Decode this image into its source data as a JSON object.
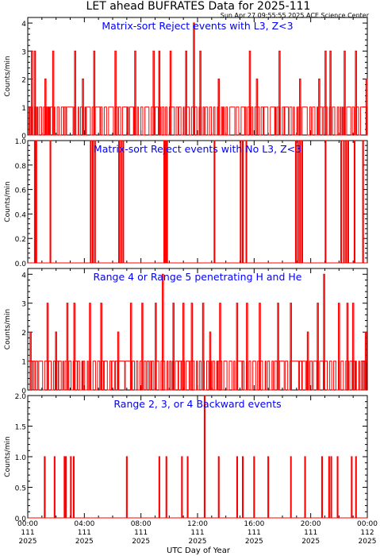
{
  "header": {
    "title": "LET ahead BUFRATES Data for 2025-111",
    "timestamp": "Sun Apr 27 09:55:55 2025 ACE Science Center"
  },
  "colors": {
    "series": "#ff0000",
    "panel_title": "#0000ff",
    "axes": "#000000",
    "background": "#ffffff"
  },
  "x_axis": {
    "label": "UTC Day of Year",
    "ticks": [
      {
        "time": "00:00",
        "doy": "111",
        "year": "2025"
      },
      {
        "time": "04:00",
        "doy": "111",
        "year": "2025"
      },
      {
        "time": "08:00",
        "doy": "111",
        "year": "2025"
      },
      {
        "time": "12:00",
        "doy": "111",
        "year": "2025"
      },
      {
        "time": "16:00",
        "doy": "111",
        "year": "2025"
      },
      {
        "time": "20:00",
        "doy": "111",
        "year": "2025"
      },
      {
        "time": "00:00",
        "doy": "112",
        "year": "2025"
      }
    ]
  },
  "chart_data": [
    {
      "type": "line",
      "title": "Matrix-sort Reject events with L3, Z<3",
      "ylabel": "Counts/min",
      "ylim": [
        0,
        4.2
      ],
      "yticks": [
        "0",
        "1",
        "2",
        "3",
        "4"
      ],
      "xlim_hours": [
        0,
        24
      ],
      "grid": false,
      "resolution": "1 min",
      "background_counts": "mostly 0–1 counts/min throughout the day",
      "peaks": [
        {
          "hour": 0.3,
          "value": 3
        },
        {
          "hour": 0.5,
          "value": 3
        },
        {
          "hour": 1.25,
          "value": 2
        },
        {
          "hour": 1.8,
          "value": 3
        },
        {
          "hour": 3.35,
          "value": 3
        },
        {
          "hour": 3.9,
          "value": 2
        },
        {
          "hour": 4.7,
          "value": 3
        },
        {
          "hour": 6.2,
          "value": 3
        },
        {
          "hour": 7.6,
          "value": 3
        },
        {
          "hour": 8.9,
          "value": 3
        },
        {
          "hour": 9.3,
          "value": 3
        },
        {
          "hour": 10.1,
          "value": 3
        },
        {
          "hour": 11.2,
          "value": 3
        },
        {
          "hour": 11.75,
          "value": 4
        },
        {
          "hour": 12.2,
          "value": 3
        },
        {
          "hour": 13.5,
          "value": 2
        },
        {
          "hour": 15.7,
          "value": 3
        },
        {
          "hour": 16.2,
          "value": 2
        },
        {
          "hour": 17.8,
          "value": 3
        },
        {
          "hour": 19.25,
          "value": 2
        },
        {
          "hour": 20.6,
          "value": 2
        },
        {
          "hour": 21.05,
          "value": 3
        },
        {
          "hour": 21.4,
          "value": 3
        },
        {
          "hour": 22.4,
          "value": 3
        },
        {
          "hour": 23.2,
          "value": 3
        },
        {
          "hour": 23.95,
          "value": 2
        }
      ]
    },
    {
      "type": "line",
      "title": "Matrix-sort Reject events with No L3, Z<3",
      "ylabel": "Counts/min",
      "ylim": [
        0,
        1.0
      ],
      "yticks": [
        "0.0",
        "0.2",
        "0.4",
        "0.6",
        "0.8",
        "1.0"
      ],
      "xlim_hours": [
        0,
        24
      ],
      "grid": false,
      "peaks": [
        {
          "hour": 0.5,
          "value": 1
        },
        {
          "hour": 0.6,
          "value": 1
        },
        {
          "hour": 1.6,
          "value": 1
        },
        {
          "hour": 4.45,
          "value": 1
        },
        {
          "hour": 4.6,
          "value": 1
        },
        {
          "hour": 4.75,
          "value": 1
        },
        {
          "hour": 6.45,
          "value": 1
        },
        {
          "hour": 6.6,
          "value": 1
        },
        {
          "hour": 6.75,
          "value": 1
        },
        {
          "hour": 9.65,
          "value": 1
        },
        {
          "hour": 9.75,
          "value": 1
        },
        {
          "hour": 9.85,
          "value": 1
        },
        {
          "hour": 13.2,
          "value": 1
        },
        {
          "hour": 15.05,
          "value": 1
        },
        {
          "hour": 15.2,
          "value": 1
        },
        {
          "hour": 15.45,
          "value": 1
        },
        {
          "hour": 18.95,
          "value": 1
        },
        {
          "hour": 19.1,
          "value": 1
        },
        {
          "hour": 19.25,
          "value": 1
        },
        {
          "hour": 19.4,
          "value": 1
        },
        {
          "hour": 21.05,
          "value": 1
        },
        {
          "hour": 22.15,
          "value": 1
        },
        {
          "hour": 22.35,
          "value": 1
        },
        {
          "hour": 22.5,
          "value": 1
        },
        {
          "hour": 22.65,
          "value": 1
        },
        {
          "hour": 23.1,
          "value": 1
        },
        {
          "hour": 23.7,
          "value": 1
        }
      ]
    },
    {
      "type": "line",
      "title": "Range 4 or Range 5 penetrating H and He",
      "ylabel": "Counts/min",
      "ylim": [
        0,
        4.2
      ],
      "yticks": [
        "0",
        "1",
        "2",
        "3",
        "4"
      ],
      "xlim_hours": [
        0,
        24
      ],
      "grid": false,
      "resolution": "1 min",
      "background_counts": "mostly 0–1 counts/min throughout the day",
      "peaks": [
        {
          "hour": 0.2,
          "value": 2
        },
        {
          "hour": 1.4,
          "value": 3
        },
        {
          "hour": 2.0,
          "value": 2
        },
        {
          "hour": 2.8,
          "value": 3
        },
        {
          "hour": 3.3,
          "value": 3
        },
        {
          "hour": 4.4,
          "value": 3
        },
        {
          "hour": 5.2,
          "value": 3
        },
        {
          "hour": 6.4,
          "value": 2
        },
        {
          "hour": 7.3,
          "value": 3
        },
        {
          "hour": 8.1,
          "value": 3
        },
        {
          "hour": 9.05,
          "value": 3
        },
        {
          "hour": 9.55,
          "value": 4
        },
        {
          "hour": 10.3,
          "value": 3
        },
        {
          "hour": 11.0,
          "value": 3
        },
        {
          "hour": 11.6,
          "value": 3
        },
        {
          "hour": 12.4,
          "value": 3
        },
        {
          "hour": 12.9,
          "value": 2
        },
        {
          "hour": 13.6,
          "value": 3
        },
        {
          "hour": 14.8,
          "value": 3
        },
        {
          "hour": 15.5,
          "value": 3
        },
        {
          "hour": 16.4,
          "value": 3
        },
        {
          "hour": 17.7,
          "value": 3
        },
        {
          "hour": 18.6,
          "value": 3
        },
        {
          "hour": 19.8,
          "value": 2
        },
        {
          "hour": 20.5,
          "value": 3
        },
        {
          "hour": 20.95,
          "value": 4
        },
        {
          "hour": 22.0,
          "value": 3
        },
        {
          "hour": 22.6,
          "value": 3
        },
        {
          "hour": 23.0,
          "value": 3
        },
        {
          "hour": 23.9,
          "value": 2
        }
      ]
    },
    {
      "type": "line",
      "title": "Range 2, 3, or 4 Backward events",
      "ylabel": "Counts/min",
      "ylim": [
        0,
        2.0
      ],
      "yticks": [
        "0.0",
        "0.5",
        "1.0",
        "1.5",
        "2.0"
      ],
      "xlim_hours": [
        0,
        24
      ],
      "grid": false,
      "peaks": [
        {
          "hour": 1.2,
          "value": 1
        },
        {
          "hour": 1.9,
          "value": 1
        },
        {
          "hour": 2.6,
          "value": 1
        },
        {
          "hour": 2.7,
          "value": 1
        },
        {
          "hour": 3.05,
          "value": 1
        },
        {
          "hour": 3.25,
          "value": 1
        },
        {
          "hour": 7.0,
          "value": 1
        },
        {
          "hour": 9.3,
          "value": 1
        },
        {
          "hour": 9.8,
          "value": 1
        },
        {
          "hour": 10.9,
          "value": 1
        },
        {
          "hour": 11.3,
          "value": 1
        },
        {
          "hour": 12.5,
          "value": 2
        },
        {
          "hour": 13.5,
          "value": 1
        },
        {
          "hour": 14.8,
          "value": 1
        },
        {
          "hour": 15.2,
          "value": 1
        },
        {
          "hour": 16.0,
          "value": 1
        },
        {
          "hour": 17.0,
          "value": 1
        },
        {
          "hour": 18.6,
          "value": 1
        },
        {
          "hour": 19.6,
          "value": 1
        },
        {
          "hour": 20.8,
          "value": 1
        },
        {
          "hour": 21.3,
          "value": 1
        },
        {
          "hour": 21.45,
          "value": 1
        },
        {
          "hour": 21.9,
          "value": 1
        },
        {
          "hour": 22.9,
          "value": 1
        },
        {
          "hour": 23.2,
          "value": 1
        }
      ]
    }
  ]
}
